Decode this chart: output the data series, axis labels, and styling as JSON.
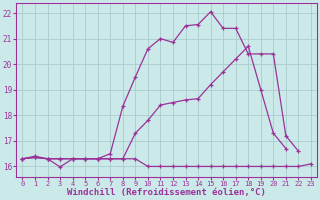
{
  "background_color": "#cce9e9",
  "grid_color": "#aacccc",
  "line_color": "#993399",
  "xlabel": "Windchill (Refroidissement éolien,°C)",
  "xlabel_fontsize": 6.5,
  "xtick_fontsize": 5,
  "ytick_fontsize": 5.5,
  "xlim": [
    -0.5,
    23.5
  ],
  "ylim": [
    15.6,
    22.4
  ],
  "yticks": [
    16,
    17,
    18,
    19,
    20,
    21,
    22
  ],
  "xticks": [
    0,
    1,
    2,
    3,
    4,
    5,
    6,
    7,
    8,
    9,
    10,
    11,
    12,
    13,
    14,
    15,
    16,
    17,
    18,
    19,
    20,
    21,
    22,
    23
  ],
  "line1_x": [
    0,
    1,
    2,
    3,
    4,
    5,
    6,
    7,
    8,
    9,
    10,
    11,
    12,
    13,
    14,
    15,
    16,
    17,
    18,
    19,
    20,
    21,
    22,
    23
  ],
  "line1_y": [
    16.3,
    16.35,
    16.3,
    15.98,
    16.3,
    16.3,
    16.3,
    16.3,
    16.3,
    16.3,
    16.0,
    16.0,
    16.0,
    16.0,
    16.0,
    16.0,
    16.0,
    16.0,
    16.0,
    16.0,
    16.0,
    16.0,
    16.0,
    16.1
  ],
  "line2_x": [
    0,
    1,
    2,
    3,
    4,
    5,
    6,
    7,
    8,
    9,
    10,
    11,
    12,
    13,
    14,
    15,
    16,
    17,
    18,
    19,
    20,
    21,
    22,
    23
  ],
  "line2_y": [
    16.3,
    16.35,
    16.3,
    16.3,
    16.3,
    16.3,
    16.3,
    16.3,
    16.3,
    17.3,
    17.8,
    18.4,
    18.5,
    18.6,
    18.65,
    19.2,
    19.7,
    20.2,
    20.7,
    19.0,
    17.3,
    16.7,
    null,
    null
  ],
  "line3_x": [
    0,
    1,
    2,
    3,
    4,
    5,
    6,
    7,
    8,
    9,
    10,
    11,
    12,
    13,
    14,
    15,
    16,
    17,
    18,
    19,
    20,
    21,
    22,
    23
  ],
  "line3_y": [
    16.3,
    16.4,
    16.3,
    16.3,
    16.3,
    16.3,
    16.3,
    16.5,
    18.35,
    19.5,
    20.6,
    21.0,
    20.85,
    21.5,
    21.55,
    22.05,
    21.4,
    21.4,
    20.4,
    20.4,
    20.4,
    17.2,
    16.6,
    null
  ]
}
